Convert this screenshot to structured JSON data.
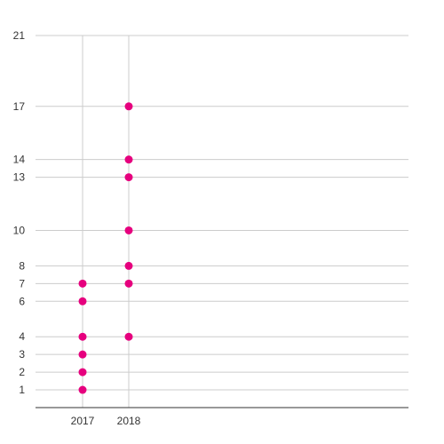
{
  "chart_data": {
    "type": "scatter",
    "x_ticks": [
      "2017",
      "2018"
    ],
    "y_ticks": [
      1,
      2,
      3,
      4,
      6,
      7,
      8,
      10,
      13,
      14,
      17,
      21
    ],
    "ylim": [
      0,
      21
    ],
    "grid": true,
    "legend": "none",
    "colors": {
      "marker": "#e6007e",
      "grid": "#cccccc",
      "axis": "#333333"
    },
    "series": [
      {
        "points": [
          {
            "x": "2017",
            "y": 1
          },
          {
            "x": "2017",
            "y": 2
          },
          {
            "x": "2017",
            "y": 3
          },
          {
            "x": "2017",
            "y": 4
          },
          {
            "x": "2017",
            "y": 6
          },
          {
            "x": "2017",
            "y": 7
          },
          {
            "x": "2018",
            "y": 4
          },
          {
            "x": "2018",
            "y": 7
          },
          {
            "x": "2018",
            "y": 8
          },
          {
            "x": "2018",
            "y": 10
          },
          {
            "x": "2018",
            "y": 13
          },
          {
            "x": "2018",
            "y": 14
          },
          {
            "x": "2018",
            "y": 17
          }
        ]
      }
    ]
  }
}
